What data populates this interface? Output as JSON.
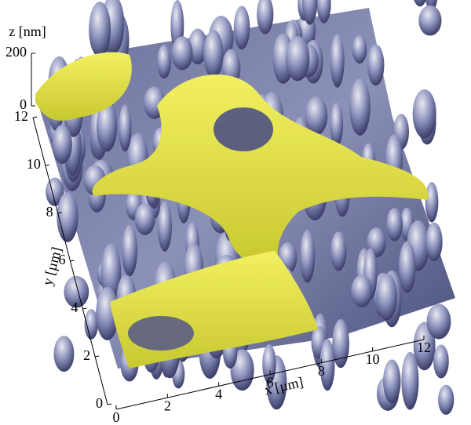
{
  "chart_data": {
    "type": "surface3d",
    "x_label": "x [µm]",
    "y_label": "y [µm]",
    "z_label": "z [nm]",
    "xlim": [
      0,
      12
    ],
    "xticks": [
      0,
      2,
      4,
      6,
      8,
      10,
      12
    ],
    "ylim": [
      0,
      12
    ],
    "yticks": [
      0,
      2,
      4,
      6,
      8,
      10,
      12
    ],
    "zlim": [
      0,
      200
    ],
    "zticks": [
      0,
      200
    ]
  }
}
